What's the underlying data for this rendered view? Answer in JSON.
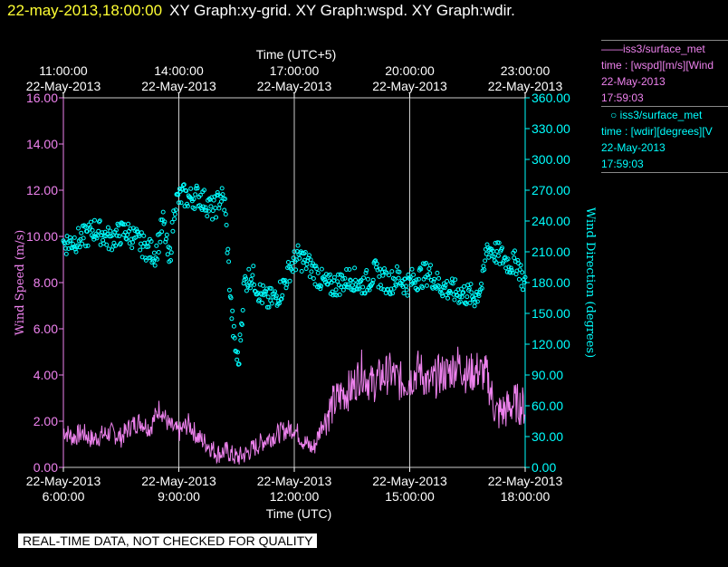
{
  "header": {
    "timestamp": "22-may-2013,18:00:00",
    "titles": "XY Graph:xy-grid.  XY Graph:wspd.  XY Graph:wdir."
  },
  "footer": {
    "quality_note": "REAL-TIME DATA, NOT CHECKED FOR QUALITY"
  },
  "legend": {
    "wspd": {
      "series": "iss3/surface_met",
      "field": "time : [wspd][m/s][Wind",
      "date": "22-May-2013",
      "time": "17:59:03"
    },
    "wdir": {
      "series": "iss3/surface_met",
      "field": "time : [wdir][degrees][V",
      "date": "22-May-2013",
      "time": "17:59:03"
    }
  },
  "colors": {
    "wspd": "#ee82ee",
    "wdir": "#00ffff",
    "grid": "#cccccc",
    "timestamp": "#ffff33"
  },
  "chart_data": {
    "type": "line+scatter",
    "title_top_axis": "Time (UTC+5)",
    "xlabel": "Time (UTC)",
    "ylabel_left": "Wind Speed (m/s)",
    "ylabel_right": "Wind Direction (degrees)",
    "xlim_hours": [
      6,
      18
    ],
    "bottom_ticks": [
      {
        "h": 6,
        "date": "22-May-2013",
        "time": "6:00:00"
      },
      {
        "h": 9,
        "date": "22-May-2013",
        "time": "9:00:00"
      },
      {
        "h": 12,
        "date": "22-May-2013",
        "time": "12:00:00"
      },
      {
        "h": 15,
        "date": "22-May-2013",
        "time": "15:00:00"
      },
      {
        "h": 18,
        "date": "22-May-2013",
        "time": "18:00:00"
      }
    ],
    "top_ticks": [
      {
        "h": 6,
        "time": "11:00:00",
        "date": "22-May-2013"
      },
      {
        "h": 9,
        "time": "14:00:00",
        "date": "22-May-2013"
      },
      {
        "h": 12,
        "time": "17:00:00",
        "date": "22-May-2013"
      },
      {
        "h": 15,
        "time": "20:00:00",
        "date": "22-May-2013"
      },
      {
        "h": 18,
        "time": "23:00:00",
        "date": "22-May-2013"
      }
    ],
    "ylim_left": [
      0,
      16
    ],
    "yticks_left": [
      "0.00",
      "2.00",
      "4.00",
      "6.00",
      "8.00",
      "10.00",
      "12.00",
      "14.00",
      "16.00"
    ],
    "ylim_right": [
      0,
      360
    ],
    "yticks_right": [
      "0.00",
      "30.00",
      "60.00",
      "90.00",
      "120.00",
      "150.00",
      "180.00",
      "210.00",
      "240.00",
      "270.00",
      "300.00",
      "330.00",
      "360.00"
    ],
    "series": [
      {
        "name": "wspd",
        "kind": "line",
        "units": "m/s",
        "points": [
          [
            6.0,
            1.6
          ],
          [
            6.25,
            1.3
          ],
          [
            6.5,
            1.5
          ],
          [
            6.75,
            1.2
          ],
          [
            7.0,
            1.4
          ],
          [
            7.25,
            1.5
          ],
          [
            7.5,
            1.3
          ],
          [
            7.75,
            1.8
          ],
          [
            8.0,
            2.0
          ],
          [
            8.25,
            1.7
          ],
          [
            8.5,
            2.6
          ],
          [
            8.75,
            1.8
          ],
          [
            9.0,
            1.5
          ],
          [
            9.25,
            1.9
          ],
          [
            9.5,
            1.3
          ],
          [
            9.75,
            1.0
          ],
          [
            10.0,
            0.6
          ],
          [
            10.25,
            0.7
          ],
          [
            10.5,
            0.4
          ],
          [
            10.75,
            0.6
          ],
          [
            11.0,
            0.9
          ],
          [
            11.25,
            1.2
          ],
          [
            11.5,
            1.4
          ],
          [
            11.75,
            1.6
          ],
          [
            12.0,
            1.7
          ],
          [
            12.25,
            1.1
          ],
          [
            12.5,
            0.8
          ],
          [
            12.75,
            2.0
          ],
          [
            13.0,
            2.7
          ],
          [
            13.25,
            3.2
          ],
          [
            13.5,
            3.4
          ],
          [
            13.75,
            4.2
          ],
          [
            14.0,
            3.6
          ],
          [
            14.25,
            3.9
          ],
          [
            14.5,
            4.1
          ],
          [
            14.75,
            3.7
          ],
          [
            15.0,
            3.8
          ],
          [
            15.25,
            4.3
          ],
          [
            15.5,
            3.5
          ],
          [
            15.75,
            4.0
          ],
          [
            16.0,
            4.1
          ],
          [
            16.25,
            4.5
          ],
          [
            16.5,
            4.0
          ],
          [
            16.75,
            4.2
          ],
          [
            17.0,
            4.0
          ],
          [
            17.25,
            2.3
          ],
          [
            17.5,
            2.5
          ],
          [
            17.75,
            2.8
          ],
          [
            18.0,
            2.6
          ]
        ]
      },
      {
        "name": "wdir",
        "kind": "scatter",
        "units": "degrees",
        "points": [
          [
            6.0,
            218
          ],
          [
            6.2,
            220
          ],
          [
            6.4,
            222
          ],
          [
            6.6,
            225
          ],
          [
            6.8,
            232
          ],
          [
            7.0,
            228
          ],
          [
            7.2,
            222
          ],
          [
            7.4,
            226
          ],
          [
            7.6,
            230
          ],
          [
            7.8,
            225
          ],
          [
            8.0,
            218
          ],
          [
            8.2,
            212
          ],
          [
            8.4,
            208
          ],
          [
            8.6,
            240
          ],
          [
            8.75,
            198
          ],
          [
            8.9,
            258
          ],
          [
            9.1,
            265
          ],
          [
            9.3,
            262
          ],
          [
            9.5,
            265
          ],
          [
            9.7,
            258
          ],
          [
            9.9,
            250
          ],
          [
            10.1,
            265
          ],
          [
            10.2,
            255
          ],
          [
            10.35,
            160
          ],
          [
            10.45,
            120
          ],
          [
            10.55,
            100
          ],
          [
            10.7,
            180
          ],
          [
            10.9,
            188
          ],
          [
            11.1,
            170
          ],
          [
            11.3,
            162
          ],
          [
            11.5,
            165
          ],
          [
            11.7,
            175
          ],
          [
            11.9,
            195
          ],
          [
            12.1,
            205
          ],
          [
            12.3,
            200
          ],
          [
            12.5,
            192
          ],
          [
            12.7,
            182
          ],
          [
            12.9,
            176
          ],
          [
            13.1,
            178
          ],
          [
            13.3,
            182
          ],
          [
            13.5,
            185
          ],
          [
            13.7,
            178
          ],
          [
            13.9,
            181
          ],
          [
            14.1,
            190
          ],
          [
            14.3,
            183
          ],
          [
            14.5,
            180
          ],
          [
            14.7,
            186
          ],
          [
            14.9,
            178
          ],
          [
            15.1,
            183
          ],
          [
            15.3,
            186
          ],
          [
            15.5,
            190
          ],
          [
            15.7,
            180
          ],
          [
            15.9,
            175
          ],
          [
            16.1,
            172
          ],
          [
            16.3,
            170
          ],
          [
            16.5,
            168
          ],
          [
            16.7,
            166
          ],
          [
            16.9,
            180
          ],
          [
            17.0,
            215
          ],
          [
            17.2,
            210
          ],
          [
            17.4,
            205
          ],
          [
            17.6,
            198
          ],
          [
            17.8,
            200
          ],
          [
            18.0,
            175
          ]
        ]
      }
    ]
  }
}
